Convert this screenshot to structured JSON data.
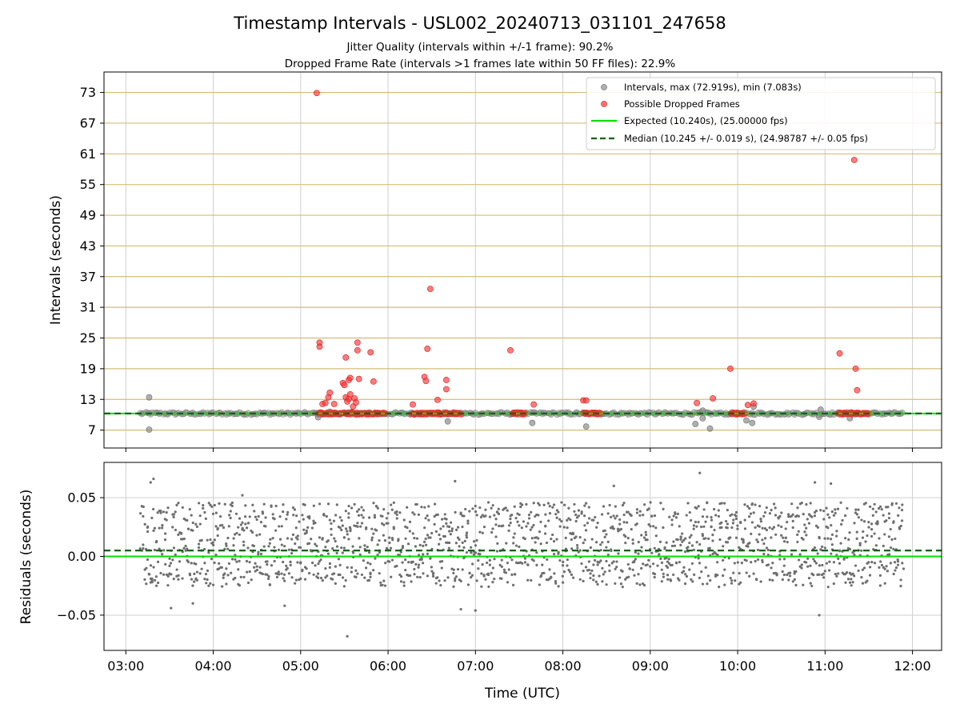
{
  "chart_data": [
    {
      "type": "scatter",
      "title": "Timestamp Intervals - USL002_20240713_031101_247658",
      "subtitle_lines": [
        "Jitter Quality (intervals within +/-1 frame): 90.2%",
        "Dropped Frame Rate (intervals >1 frames late within 50 FF files): 22.9%"
      ],
      "ylabel": "Intervals (seconds)",
      "xlim": [
        "02:45",
        "12:20"
      ],
      "ylim": [
        3.5,
        77
      ],
      "yticks": [
        7,
        13,
        19,
        25,
        31,
        37,
        43,
        49,
        55,
        61,
        67,
        73
      ],
      "xticks": [
        "03:00",
        "04:00",
        "05:00",
        "06:00",
        "07:00",
        "08:00",
        "09:00",
        "10:00",
        "11:00",
        "12:00"
      ],
      "grid": true,
      "legend_position": "top-right",
      "colors": {
        "intervals": "#8c8c8c",
        "dropped": "#ff3333",
        "expected": "#00e000",
        "median": "#006400",
        "hgrid": "#d4bc78"
      },
      "series": [
        {
          "name": "Intervals, max (72.919s), min (7.083s)"
        },
        {
          "name": "Possible Dropped Frames",
          "dropped_runs": [
            [
              "05:12",
              "05:58"
            ],
            [
              "06:16",
              "06:50"
            ],
            [
              "07:25",
              "07:34"
            ],
            [
              "08:14",
              "08:26"
            ],
            [
              "09:55",
              "10:05"
            ],
            [
              "11:09",
              "11:30"
            ]
          ],
          "points": [
            [
              "05:11",
              72.9
            ],
            [
              "05:13",
              24.1
            ],
            [
              "05:13",
              23.3
            ],
            [
              "05:15",
              12.1
            ],
            [
              "05:17",
              12.3
            ],
            [
              "05:19",
              13.4
            ],
            [
              "05:20",
              14.3
            ],
            [
              "05:23",
              12.1
            ],
            [
              "05:29",
              16.2
            ],
            [
              "05:30",
              15.8
            ],
            [
              "05:31",
              21.2
            ],
            [
              "05:31",
              13.4
            ],
            [
              "05:32",
              12.6
            ],
            [
              "05:33",
              13.1
            ],
            [
              "05:33",
              16.8
            ],
            [
              "05:34",
              17.2
            ],
            [
              "05:34",
              14.0
            ],
            [
              "05:36",
              11.6
            ],
            [
              "05:37",
              13.2
            ],
            [
              "05:38",
              12.4
            ],
            [
              "05:39",
              24.1
            ],
            [
              "05:39",
              22.6
            ],
            [
              "05:40",
              17.0
            ],
            [
              "05:48",
              22.2
            ],
            [
              "05:50",
              16.5
            ],
            [
              "06:17",
              12.0
            ],
            [
              "06:25",
              17.4
            ],
            [
              "06:26",
              16.6
            ],
            [
              "06:27",
              22.9
            ],
            [
              "06:29",
              34.6
            ],
            [
              "06:34",
              12.9
            ],
            [
              "06:40",
              15.0
            ],
            [
              "06:40",
              16.8
            ],
            [
              "07:24",
              22.6
            ],
            [
              "07:40",
              12.0
            ],
            [
              "08:14",
              12.8
            ],
            [
              "08:16",
              12.8
            ],
            [
              "09:32",
              12.3
            ],
            [
              "09:43",
              13.2
            ],
            [
              "09:55",
              19.0
            ],
            [
              "10:07",
              11.9
            ],
            [
              "10:11",
              12.2
            ],
            [
              "11:10",
              22.0
            ],
            [
              "11:20",
              59.8
            ],
            [
              "11:21",
              19.0
            ],
            [
              "11:22",
              14.8
            ]
          ]
        },
        {
          "name": "Expected (10.240s), (25.00000 fps)",
          "value": 10.24
        },
        {
          "name": "Median (10.245 +/- 0.019 s), (24.98787 +/- 0.05 fps)",
          "value": 10.245
        }
      ],
      "interval_outliers": [
        [
          "03:16",
          13.4
        ],
        [
          "03:16",
          7.1
        ],
        [
          "05:12",
          9.5
        ],
        [
          "05:20",
          10.6
        ],
        [
          "05:35",
          10.5
        ],
        [
          "06:41",
          8.7
        ],
        [
          "07:39",
          8.4
        ],
        [
          "08:16",
          7.7
        ],
        [
          "09:31",
          8.2
        ],
        [
          "09:36",
          9.3
        ],
        [
          "09:36",
          10.8
        ],
        [
          "09:41",
          7.3
        ],
        [
          "10:06",
          8.9
        ],
        [
          "10:10",
          8.4
        ],
        [
          "10:11",
          11.6
        ],
        [
          "10:56",
          9.6
        ],
        [
          "10:57",
          11.0
        ],
        [
          "11:17",
          9.3
        ]
      ],
      "interval_range": [
        "03:10",
        "11:54"
      ]
    },
    {
      "type": "scatter",
      "ylabel": "Residuals (seconds)",
      "xlabel": "Time (UTC)",
      "ylim": [
        -0.08,
        0.08
      ],
      "yticks": [
        -0.05,
        0.0,
        0.05
      ],
      "ytick_labels": [
        "−0.05",
        "0.00",
        "0.05"
      ],
      "xticks": [
        "03:00",
        "04:00",
        "05:00",
        "06:00",
        "07:00",
        "08:00",
        "09:00",
        "10:00",
        "11:00",
        "12:00"
      ],
      "grid": true,
      "expected_residual": 0.0,
      "median_residual": 0.005,
      "residual_spread": [
        -0.02,
        0.045
      ],
      "residual_outliers": [
        [
          "03:17",
          0.063
        ],
        [
          "03:19",
          0.066
        ],
        [
          "03:31",
          -0.044
        ],
        [
          "03:46",
          -0.04
        ],
        [
          "04:20",
          0.052
        ],
        [
          "04:49",
          -0.042
        ],
        [
          "05:32",
          -0.068
        ],
        [
          "06:46",
          0.064
        ],
        [
          "06:50",
          -0.045
        ],
        [
          "07:00",
          -0.046
        ],
        [
          "08:35",
          0.06
        ],
        [
          "09:34",
          0.071
        ],
        [
          "10:53",
          0.063
        ],
        [
          "10:56",
          -0.05
        ],
        [
          "11:04",
          0.062
        ]
      ]
    }
  ]
}
